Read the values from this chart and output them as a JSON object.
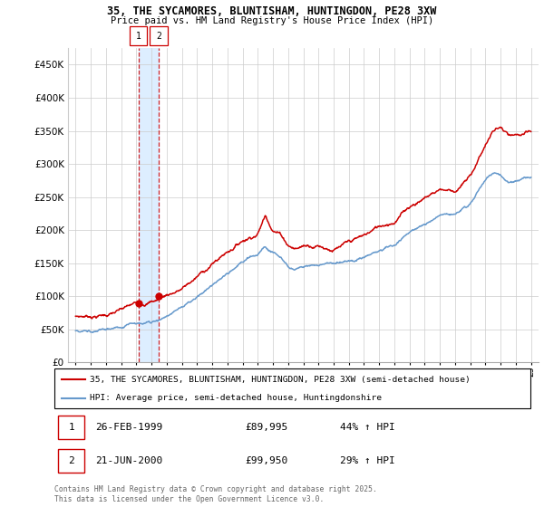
{
  "title_line1": "35, THE SYCAMORES, BLUNTISHAM, HUNTINGDON, PE28 3XW",
  "title_line2": "Price paid vs. HM Land Registry's House Price Index (HPI)",
  "ylim": [
    0,
    475000
  ],
  "yticks": [
    0,
    50000,
    100000,
    150000,
    200000,
    250000,
    300000,
    350000,
    400000,
    450000
  ],
  "legend_line1": "35, THE SYCAMORES, BLUNTISHAM, HUNTINGDON, PE28 3XW (semi-detached house)",
  "legend_line2": "HPI: Average price, semi-detached house, Huntingdonshire",
  "transaction1_date": "26-FEB-1999",
  "transaction1_price": "£89,995",
  "transaction1_hpi": "44% ↑ HPI",
  "transaction2_date": "21-JUN-2000",
  "transaction2_price": "£99,950",
  "transaction2_hpi": "29% ↑ HPI",
  "copyright_text": "Contains HM Land Registry data © Crown copyright and database right 2025.\nThis data is licensed under the Open Government Licence v3.0.",
  "red_color": "#cc0000",
  "blue_color": "#6699cc",
  "shade_color": "#ddeeff",
  "transaction1_x": 1999.15,
  "transaction2_x": 2000.47,
  "transaction1_y": 89995,
  "transaction2_y": 99950,
  "xmin": 1994.5,
  "xmax": 2025.5
}
